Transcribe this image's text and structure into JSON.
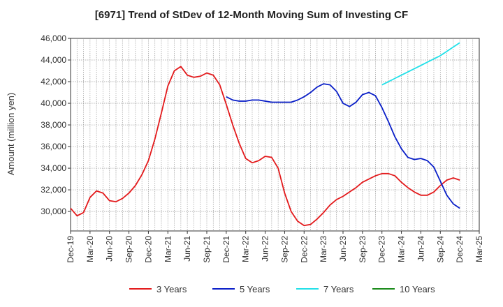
{
  "chart_data": {
    "type": "line",
    "title": "[6971]  Trend of StDev of 12-Month Moving Sum of Investing CF",
    "xlabel": "",
    "ylabel": "Amount (million yen)",
    "ylim": [
      28200,
      46000
    ],
    "y_ticks": [
      30000,
      32000,
      34000,
      36000,
      38000,
      40000,
      42000,
      44000,
      46000
    ],
    "y_tick_labels": [
      "30,000",
      "32,000",
      "34,000",
      "36,000",
      "38,000",
      "40,000",
      "42,000",
      "44,000",
      "46,000"
    ],
    "x_tick_labels": [
      "Dec-19",
      "Mar-20",
      "Jun-20",
      "Sep-20",
      "Dec-20",
      "Mar-21",
      "Jun-21",
      "Sep-21",
      "Dec-21",
      "Mar-22",
      "Jun-22",
      "Sep-22",
      "Dec-22",
      "Mar-23",
      "Jun-23",
      "Sep-23",
      "Dec-23",
      "Mar-24",
      "Jun-24",
      "Sep-24",
      "Dec-24",
      "Mar-25"
    ],
    "x_start": "Dec-19",
    "grid": true,
    "legend_position": "bottom",
    "series": [
      {
        "name": "3 Years",
        "color": "#e31a1c",
        "start": "Dec-19",
        "values": [
          30300,
          29600,
          29900,
          31300,
          31900,
          31700,
          31000,
          30900,
          31200,
          31700,
          32400,
          33400,
          34700,
          36700,
          39100,
          41600,
          43000,
          43400,
          42600,
          42400,
          42500,
          42800,
          42600,
          41700,
          39900,
          38000,
          36300,
          34900,
          34500,
          34700,
          35100,
          35000,
          34000,
          31700,
          30000,
          29100,
          28700,
          28800,
          29300,
          29900,
          30600,
          31100,
          31400,
          31800,
          32200,
          32700,
          33000,
          33300,
          33500,
          33500,
          33300,
          32700,
          32200,
          31800,
          31500,
          31500,
          31800,
          32400,
          32900,
          33100,
          32900
        ]
      },
      {
        "name": "5 Years",
        "color": "#0a1fc8",
        "start": "Dec-21",
        "values": [
          40600,
          40300,
          40200,
          40200,
          40300,
          40300,
          40200,
          40100,
          40100,
          40100,
          40100,
          40300,
          40600,
          41000,
          41500,
          41800,
          41700,
          41100,
          40000,
          39700,
          40100,
          40800,
          41000,
          40700,
          39600,
          38300,
          36900,
          35800,
          35000,
          34800,
          34900,
          34700,
          34100,
          32800,
          31500,
          30700,
          30300
        ]
      },
      {
        "name": "7 Years",
        "color": "#22e0e8",
        "start": "Dec-23",
        "values": [
          41700,
          42000,
          42300,
          42600,
          42900,
          43200,
          43500,
          43800,
          44100,
          44400,
          44800,
          45200,
          45600
        ]
      },
      {
        "name": "10 Years",
        "color": "#1a8a1a",
        "start": "Dec-24",
        "values": []
      }
    ]
  }
}
